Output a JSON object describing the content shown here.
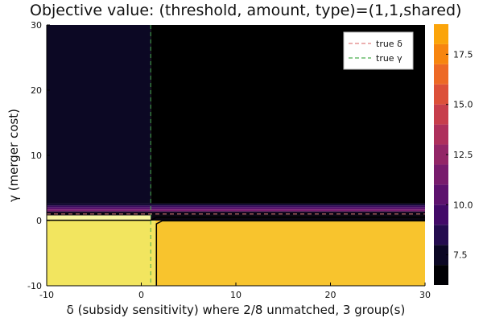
{
  "chart_data": {
    "type": "heatmap",
    "title": "Objective value: (threshold, amount, type)=(1,1,shared)",
    "xlabel": "δ (subsidy sensitivity) where 2/8 unmatched, 3 group(s)",
    "ylabel": "γ (merger cost)",
    "xlim": [
      -10,
      30
    ],
    "ylim": [
      -10,
      30
    ],
    "xticks": [
      "-10",
      "0",
      "10",
      "20",
      "30"
    ],
    "yticks": [
      "-10",
      "0",
      "10",
      "20",
      "30"
    ],
    "colorbar": {
      "range": [
        6,
        19
      ],
      "ticks": [
        "7.5",
        "10.0",
        "12.5",
        "15.0",
        "17.5"
      ],
      "levels": [
        {
          "from": 6,
          "to": 7,
          "color": "#000004"
        },
        {
          "from": 7,
          "to": 8,
          "color": "#0b0724"
        },
        {
          "from": 8,
          "to": 9,
          "color": "#240c4f"
        },
        {
          "from": 9,
          "to": 10,
          "color": "#420a68"
        },
        {
          "from": 10,
          "to": 11,
          "color": "#5d126e"
        },
        {
          "from": 11,
          "to": 12,
          "color": "#781c6d"
        },
        {
          "from": 12,
          "to": 13,
          "color": "#932667"
        },
        {
          "from": 13,
          "to": 14,
          "color": "#ae305c"
        },
        {
          "from": 14,
          "to": 15,
          "color": "#c73e4c"
        },
        {
          "from": 15,
          "to": 16,
          "color": "#dc5039"
        },
        {
          "from": 16,
          "to": 17,
          "color": "#ed6925"
        },
        {
          "from": 17,
          "to": 18,
          "color": "#f7850f"
        },
        {
          "from": 18,
          "to": 19,
          "color": "#fba40a"
        },
        {
          "from": 19,
          "to": 20,
          "color": "#f6c53a"
        },
        {
          "from": 20,
          "to": 21,
          "color": "#f3e55d"
        }
      ]
    },
    "regions": [
      {
        "name": "upper-left",
        "xrange": [
          -10,
          1
        ],
        "yrange": [
          2.6,
          30
        ],
        "value": 6.5,
        "color": "#0c0824"
      },
      {
        "name": "upper-right",
        "xrange": [
          1,
          30
        ],
        "yrange": [
          2.6,
          30
        ],
        "value": 6,
        "color": "#000000"
      },
      {
        "name": "lower-left",
        "xrange": [
          -10,
          1.5
        ],
        "yrange": [
          -10,
          0
        ],
        "value": 18.5,
        "color": "#f2e55f"
      },
      {
        "name": "lower-right",
        "xrange": [
          1.5,
          30
        ],
        "yrange": [
          -10,
          0
        ],
        "value": 17,
        "color": "#f8c42d"
      }
    ],
    "vlines": [
      {
        "name": "true δ",
        "x": 1,
        "color": "#e07070",
        "style": "dashed"
      }
    ],
    "hlines": [
      {
        "name": "true γ",
        "y": 1,
        "color": "#5fae5f",
        "style": "dashed"
      }
    ],
    "legend": {
      "placement": "top-right",
      "entries": [
        {
          "label": "true δ",
          "color": "#e08080"
        },
        {
          "label": "true γ",
          "color": "#4caf50"
        }
      ]
    },
    "grid": false
  }
}
